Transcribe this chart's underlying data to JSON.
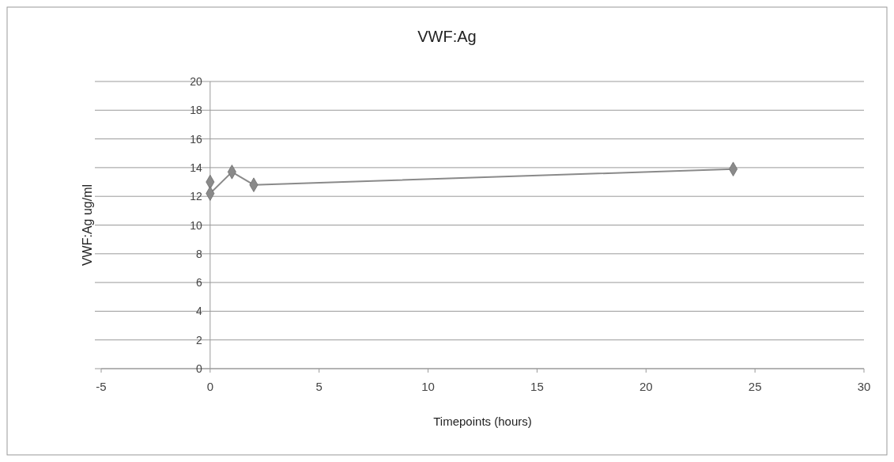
{
  "chart_data": {
    "type": "line",
    "title": "VWF:Ag",
    "xlabel": "Timepoints (hours)",
    "ylabel": "VWF:Ag ug/ml",
    "x": [
      0,
      0,
      1,
      2,
      24
    ],
    "series": [
      {
        "color": "#8a8a8a",
        "values": [
          13.0,
          12.2,
          13.7,
          12.8,
          13.9
        ]
      }
    ],
    "xlim": [
      -5,
      30
    ],
    "xticks": [
      -5,
      0,
      5,
      10,
      15,
      20,
      25,
      30
    ],
    "ylim": [
      0,
      20
    ],
    "yticks": [
      0,
      2,
      4,
      6,
      8,
      10,
      12,
      14,
      16,
      18,
      20
    ],
    "grid": "y",
    "marker": "diamond",
    "line_style": "solid"
  }
}
